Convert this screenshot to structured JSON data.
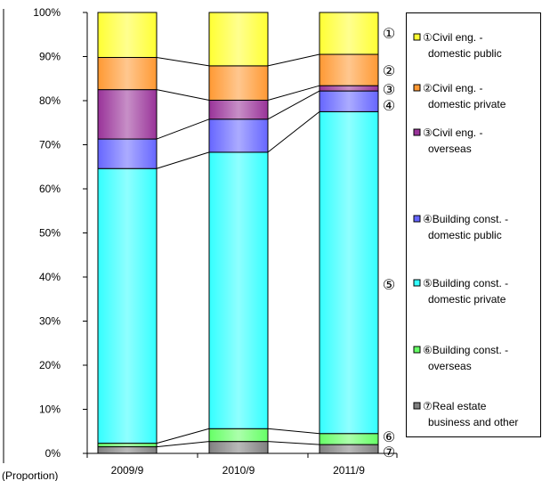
{
  "chart_data": {
    "type": "bar",
    "stacked": true,
    "categories": [
      "2009/9",
      "2010/9",
      "2011/9"
    ],
    "ylabel": "(Proportion)",
    "ylim": [
      0,
      100
    ],
    "yticks": [
      "0%",
      "10%",
      "20%",
      "30%",
      "40%",
      "50%",
      "60%",
      "70%",
      "80%",
      "90%",
      "100%"
    ],
    "grid": false,
    "legend_position": "right",
    "series": [
      {
        "marker": "⑦",
        "name": "⑦Real estate business and other",
        "color": "#808080",
        "values": [
          1.5,
          2.7,
          2.0
        ]
      },
      {
        "marker": "⑥",
        "name": "⑥Building const. - overseas",
        "color": "#66ff66",
        "values": [
          0.8,
          2.9,
          2.5
        ]
      },
      {
        "marker": "⑤",
        "name": "⑤Building const. - domestic private",
        "color": "#33ffff",
        "values": [
          62.3,
          62.7,
          73.0
        ]
      },
      {
        "marker": "④",
        "name": "④Building const. - domestic public",
        "color": "#6666ff",
        "values": [
          6.7,
          7.5,
          4.7
        ]
      },
      {
        "marker": "③",
        "name": "③Civil eng. - overseas",
        "color": "#993399",
        "values": [
          11.2,
          4.3,
          1.2
        ]
      },
      {
        "marker": "②",
        "name": "②Civil eng. - domestic private",
        "color": "#ff9933",
        "values": [
          7.3,
          7.8,
          7.1
        ]
      },
      {
        "marker": "①",
        "name": "①Civil eng. - domestic public",
        "color": "#ffff33",
        "values": [
          10.2,
          12.1,
          9.5
        ]
      }
    ]
  }
}
